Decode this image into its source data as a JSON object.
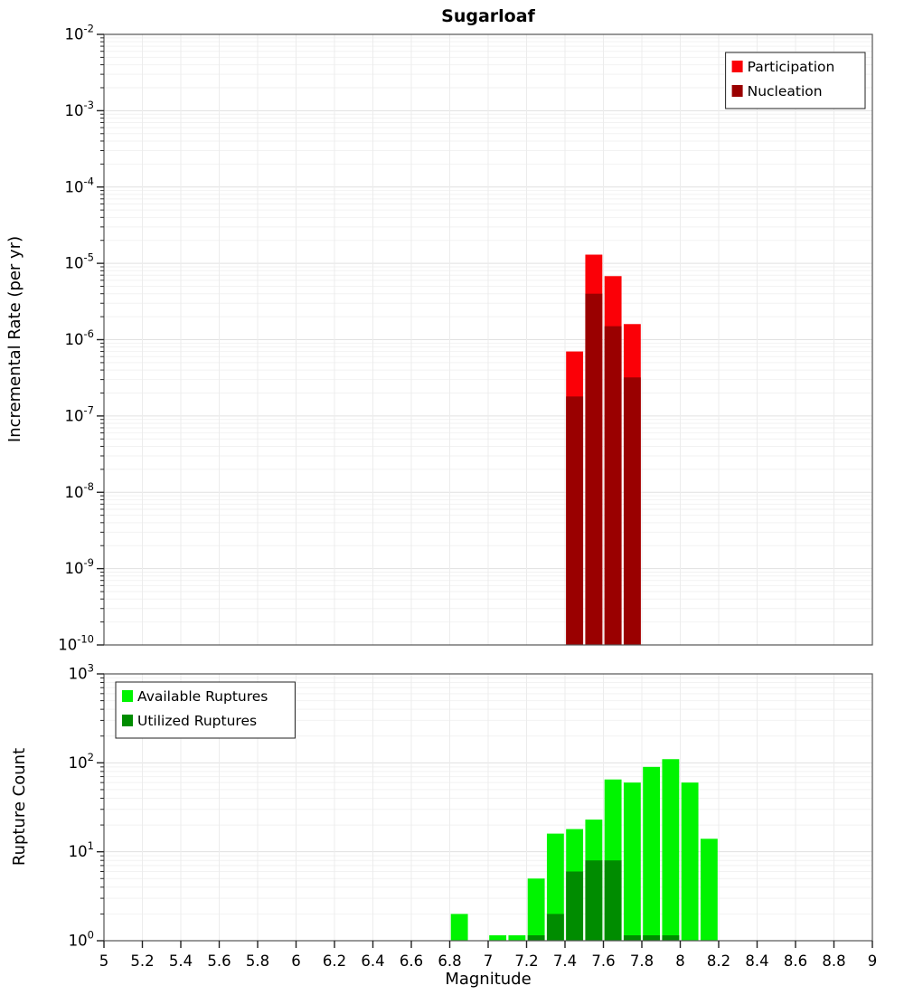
{
  "title": "Sugarloaf",
  "xlabel": "Magnitude",
  "chart_data": [
    {
      "type": "bar",
      "name": "incremental-rate",
      "ylabel": "Incremental Rate (per yr)",
      "yscale": "log",
      "xlim": [
        5,
        9
      ],
      "ylim": [
        1e-10,
        0.01
      ],
      "ytick_exponents": [
        -2,
        -3,
        -4,
        -5,
        -6,
        -7,
        -8,
        -9,
        -10
      ],
      "xticks": [
        "5",
        "5.2",
        "5.4",
        "5.6",
        "5.8",
        "6",
        "6.2",
        "6.4",
        "6.6",
        "6.8",
        "7",
        "7.2",
        "7.4",
        "7.6",
        "7.8",
        "8",
        "8.2",
        "8.4",
        "8.6",
        "8.8",
        "9"
      ],
      "show_xtick_labels": false,
      "bin_width": 0.1,
      "grid": true,
      "legend": {
        "position": "top-right",
        "entries": [
          {
            "label": "Participation",
            "color": "#fb0007"
          },
          {
            "label": "Nucleation",
            "color": "#9a0000"
          }
        ]
      },
      "series": [
        {
          "name": "Participation",
          "color": "#fb0007",
          "bins": [
            7.45,
            7.55,
            7.65,
            7.75
          ],
          "values": [
            7e-07,
            1.3e-05,
            6.8e-06,
            1.6e-06
          ]
        },
        {
          "name": "Nucleation",
          "color": "#9a0000",
          "bins": [
            7.45,
            7.55,
            7.65,
            7.75
          ],
          "values": [
            1.8e-07,
            4e-06,
            1.5e-06,
            3.2e-07
          ]
        }
      ]
    },
    {
      "type": "bar",
      "name": "rupture-count",
      "ylabel": "Rupture Count",
      "yscale": "log",
      "xlim": [
        5,
        9
      ],
      "ylim": [
        1,
        1000
      ],
      "ytick_exponents": [
        0,
        1,
        2,
        3
      ],
      "xticks": [
        "5",
        "5.2",
        "5.4",
        "5.6",
        "5.8",
        "6",
        "6.2",
        "6.4",
        "6.6",
        "6.8",
        "7",
        "7.2",
        "7.4",
        "7.6",
        "7.8",
        "8",
        "8.2",
        "8.4",
        "8.6",
        "8.8",
        "9"
      ],
      "show_xtick_labels": true,
      "bin_width": 0.1,
      "grid": true,
      "legend": {
        "position": "top-left",
        "entries": [
          {
            "label": "Available Ruptures",
            "color": "#00f400"
          },
          {
            "label": "Utilized Ruptures",
            "color": "#008c00"
          }
        ]
      },
      "series": [
        {
          "name": "Available Ruptures",
          "color": "#00f400",
          "bins": [
            6.85,
            7.05,
            7.15,
            7.25,
            7.35,
            7.45,
            7.55,
            7.65,
            7.75,
            7.85,
            7.95,
            8.05,
            8.15
          ],
          "values": [
            2,
            1,
            1,
            5,
            16,
            18,
            23,
            65,
            60,
            90,
            110,
            60,
            14
          ]
        },
        {
          "name": "Utilized Ruptures",
          "color": "#008c00",
          "bins": [
            7.25,
            7.35,
            7.45,
            7.55,
            7.65,
            7.75,
            7.85,
            7.95
          ],
          "values": [
            1,
            2,
            6,
            8,
            8,
            1,
            1,
            1
          ]
        }
      ]
    }
  ]
}
